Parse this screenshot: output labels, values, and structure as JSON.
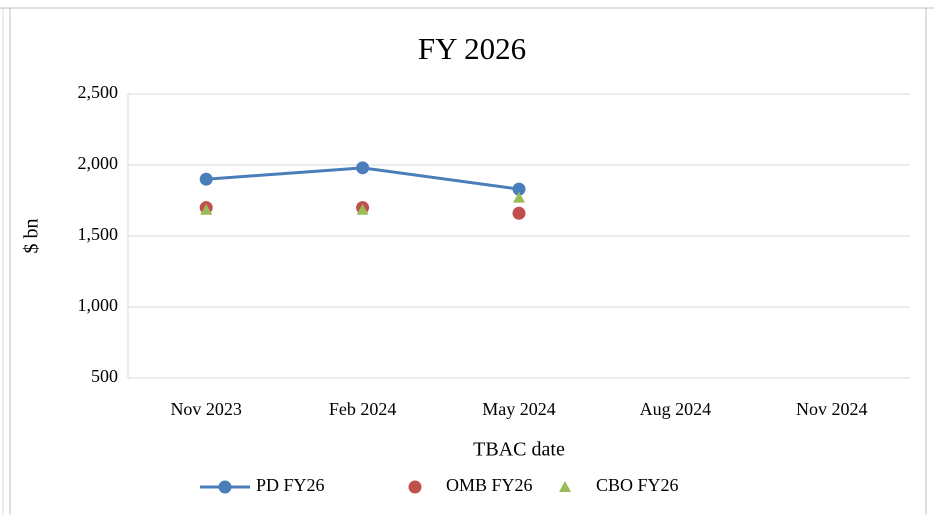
{
  "chart_data": {
    "type": "line",
    "title": "FY 2026",
    "x_label": "TBAC date",
    "y_label": "$ bn",
    "categories": [
      "Nov 2023",
      "Feb 2024",
      "May 2024",
      "Aug 2024",
      "Nov 2024"
    ],
    "series": [
      {
        "name": "PD FY26",
        "color": "#4a7ebb",
        "line": true,
        "marker": "circle",
        "values": [
          1900,
          1980,
          1830,
          null,
          null
        ]
      },
      {
        "name": "OMB FY26",
        "color": "#c0504d",
        "line": false,
        "marker": "circle",
        "values": [
          1700,
          1700,
          1660,
          null,
          null
        ]
      },
      {
        "name": "CBO FY26",
        "color": "#9bbb59",
        "line": false,
        "marker": "triangle",
        "values": [
          1685,
          1685,
          1770,
          null,
          null
        ]
      }
    ],
    "ylim": [
      500,
      2500
    ],
    "yticks": [
      {
        "value": 500,
        "label": "500"
      },
      {
        "value": 1000,
        "label": "1,000"
      },
      {
        "value": 1500,
        "label": "1,500"
      },
      {
        "value": 2000,
        "label": "2,000"
      },
      {
        "value": 2500,
        "label": "2,500"
      }
    ],
    "grid": true,
    "legend": "bottom"
  }
}
